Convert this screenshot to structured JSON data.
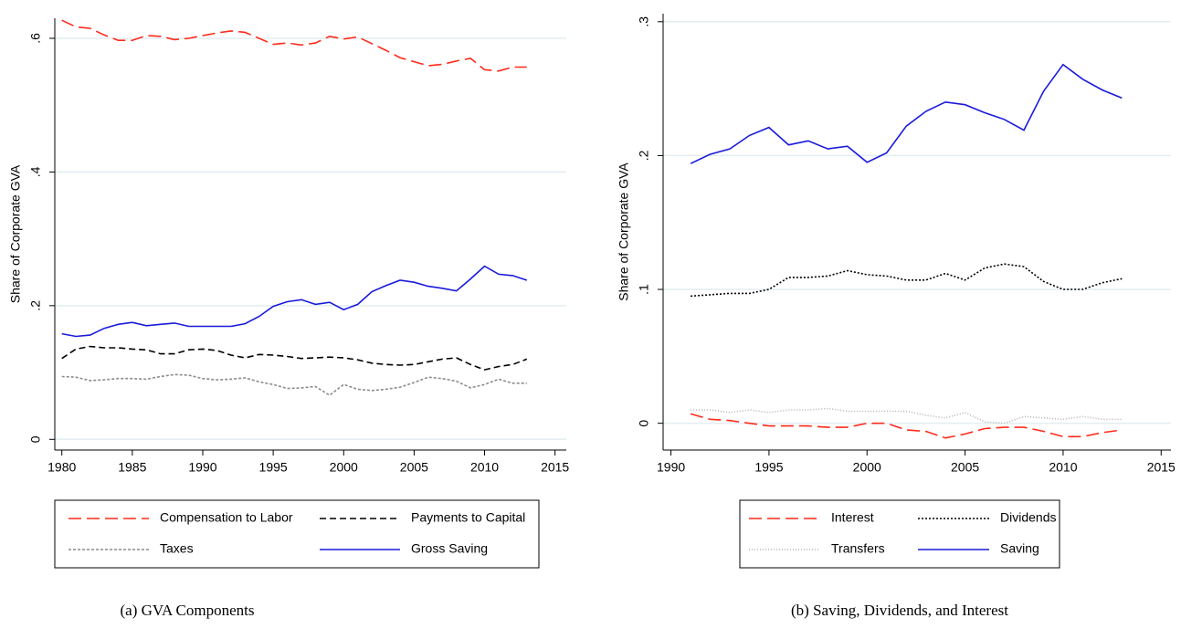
{
  "chart_data": [
    {
      "type": "line",
      "title": "(a) GVA Components",
      "y_label": "Share of Corporate GVA",
      "x": [
        1980,
        1981,
        1982,
        1983,
        1984,
        1985,
        1986,
        1987,
        1988,
        1989,
        1990,
        1991,
        1992,
        1993,
        1994,
        1995,
        1996,
        1997,
        1998,
        1999,
        2000,
        2001,
        2002,
        2003,
        2004,
        2005,
        2006,
        2007,
        2008,
        2009,
        2010,
        2011,
        2012,
        2013
      ],
      "xlim": [
        1979.5,
        2015.8
      ],
      "xticks": [
        1980,
        1985,
        1990,
        1995,
        2000,
        2005,
        2010,
        2015
      ],
      "ylim": [
        -0.016,
        0.63
      ],
      "yticks": [
        0,
        {
          "value": 0.2,
          "label": ".2"
        },
        {
          "value": 0.4,
          "label": ".4"
        },
        {
          "value": 0.6,
          "label": ".6"
        }
      ],
      "grid": true,
      "legend": "bottom",
      "series": [
        {
          "name": "Compensation to Labor",
          "color": "#ff2a1a",
          "dash": "long",
          "values": [
            0.627,
            0.617,
            0.615,
            0.605,
            0.597,
            0.597,
            0.604,
            0.603,
            0.598,
            0.6,
            0.604,
            0.608,
            0.611,
            0.609,
            0.6,
            0.591,
            0.593,
            0.59,
            0.593,
            0.603,
            0.599,
            0.602,
            0.592,
            0.582,
            0.571,
            0.565,
            0.559,
            0.561,
            0.566,
            0.57,
            0.553,
            0.551,
            0.557,
            0.557
          ]
        },
        {
          "name": "Payments to Capital",
          "color": "#000000",
          "dash": "medium",
          "values": [
            0.121,
            0.135,
            0.139,
            0.137,
            0.137,
            0.135,
            0.134,
            0.128,
            0.128,
            0.134,
            0.135,
            0.133,
            0.126,
            0.122,
            0.127,
            0.126,
            0.124,
            0.121,
            0.122,
            0.123,
            0.122,
            0.119,
            0.114,
            0.112,
            0.111,
            0.112,
            0.116,
            0.12,
            0.122,
            0.112,
            0.104,
            0.109,
            0.112,
            0.12
          ]
        },
        {
          "name": "Taxes",
          "color": "#8c8c8c",
          "dash": "short",
          "values": [
            0.094,
            0.093,
            0.088,
            0.089,
            0.091,
            0.091,
            0.09,
            0.094,
            0.097,
            0.096,
            0.091,
            0.089,
            0.09,
            0.092,
            0.086,
            0.082,
            0.076,
            0.077,
            0.079,
            0.066,
            0.082,
            0.075,
            0.073,
            0.075,
            0.078,
            0.085,
            0.093,
            0.091,
            0.087,
            0.077,
            0.082,
            0.09,
            0.084,
            0.084
          ]
        },
        {
          "name": "Gross Saving",
          "color": "#1a1adc",
          "dash": "solid",
          "values": [
            0.158,
            0.154,
            0.156,
            0.166,
            0.172,
            0.175,
            0.17,
            0.172,
            0.174,
            0.169,
            0.169,
            0.169,
            0.169,
            0.173,
            0.184,
            0.199,
            0.206,
            0.209,
            0.202,
            0.205,
            0.194,
            0.202,
            0.221,
            0.23,
            0.238,
            0.235,
            0.229,
            0.226,
            0.222,
            0.24,
            0.259,
            0.247,
            0.245,
            0.238
          ]
        }
      ]
    },
    {
      "type": "line",
      "title": "(b) Saving, Dividends, and Interest",
      "y_label": "Share of Corporate GVA",
      "x": [
        1991,
        1992,
        1993,
        1994,
        1995,
        1996,
        1997,
        1998,
        1999,
        2000,
        2001,
        2002,
        2003,
        2004,
        2005,
        2006,
        2007,
        2008,
        2009,
        2010,
        2011,
        2012,
        2013
      ],
      "xlim": [
        1989.6,
        2015.5
      ],
      "xticks": [
        1990,
        1995,
        2000,
        2005,
        2010,
        2015
      ],
      "ylim": [
        -0.02,
        0.306
      ],
      "yticks": [
        0,
        {
          "value": 0.1,
          "label": ".1"
        },
        {
          "value": 0.2,
          "label": ".2"
        },
        {
          "value": 0.3,
          "label": ".3"
        }
      ],
      "grid": true,
      "legend": "bottom",
      "series": [
        {
          "name": "Interest",
          "color": "#ff2a1a",
          "dash": "long",
          "values": [
            0.007,
            0.003,
            0.002,
            0.0,
            -0.002,
            -0.002,
            -0.002,
            -0.003,
            -0.003,
            0.0,
            0.0,
            -0.005,
            -0.006,
            -0.011,
            -0.008,
            -0.004,
            -0.003,
            -0.003,
            -0.006,
            -0.01,
            -0.01,
            -0.007,
            -0.005
          ]
        },
        {
          "name": "Dividends",
          "color": "#000000",
          "dash": "dot",
          "values": [
            0.095,
            0.096,
            0.097,
            0.097,
            0.1,
            0.109,
            0.109,
            0.11,
            0.114,
            0.111,
            0.11,
            0.107,
            0.107,
            0.112,
            0.107,
            0.116,
            0.119,
            0.117,
            0.106,
            0.1,
            0.1,
            0.105,
            0.108
          ]
        },
        {
          "name": "Transfers",
          "color": "#b4b4b4",
          "dash": "fine",
          "values": [
            0.01,
            0.01,
            0.008,
            0.01,
            0.008,
            0.01,
            0.01,
            0.011,
            0.009,
            0.009,
            0.009,
            0.009,
            0.006,
            0.004,
            0.008,
            0.001,
            0.0,
            0.005,
            0.004,
            0.003,
            0.005,
            0.003,
            0.003
          ]
        },
        {
          "name": "Saving",
          "color": "#1a1adc",
          "dash": "solid",
          "values": [
            0.194,
            0.201,
            0.205,
            0.215,
            0.221,
            0.208,
            0.211,
            0.205,
            0.207,
            0.195,
            0.202,
            0.222,
            0.233,
            0.24,
            0.238,
            0.232,
            0.227,
            0.219,
            0.248,
            0.268,
            0.257,
            0.249,
            0.243
          ]
        }
      ]
    }
  ]
}
